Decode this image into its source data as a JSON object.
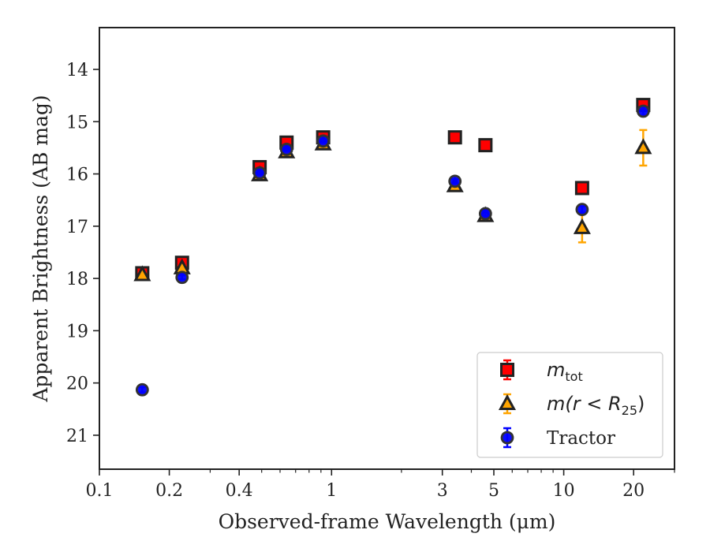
{
  "chart_data": {
    "type": "scatter",
    "title": "",
    "xlabel": "Observed-frame Wavelength (μm)",
    "ylabel": "Apparent Brightness (AB mag)",
    "xscale": "log",
    "xlim": [
      0.1,
      30
    ],
    "ylim": [
      21.65,
      13.2
    ],
    "y_inverted": true,
    "x_ticks": [
      {
        "value": 0.1,
        "label": "0.1"
      },
      {
        "value": 0.2,
        "label": "0.2"
      },
      {
        "value": 0.4,
        "label": "0.4"
      },
      {
        "value": 1,
        "label": "1"
      },
      {
        "value": 3,
        "label": "3"
      },
      {
        "value": 5,
        "label": "5"
      },
      {
        "value": 10,
        "label": "10"
      },
      {
        "value": 20,
        "label": "20"
      }
    ],
    "x_minor_ticks": [
      0.3,
      0.5,
      0.6,
      0.7,
      0.8,
      0.9,
      2,
      4,
      6,
      7,
      8,
      9,
      30
    ],
    "y_ticks": [
      14,
      15,
      16,
      17,
      18,
      19,
      20,
      21
    ],
    "grid": false,
    "legend_position": "bottom-right",
    "series": [
      {
        "name": "m_tot",
        "legend_label": {
          "base": "m",
          "sub": "tot"
        },
        "marker": "square",
        "color": "#ff0000",
        "edge_color": "#222222",
        "error_color": "#ff0000",
        "x": [
          0.153,
          0.227,
          0.49,
          0.64,
          0.92,
          3.4,
          4.6,
          12.0,
          22.0
        ],
        "y": [
          17.9,
          17.7,
          15.87,
          15.4,
          15.3,
          15.3,
          15.45,
          16.27,
          14.68
        ],
        "yerr": [
          0.04,
          0.04,
          0.03,
          0.03,
          0.03,
          0.03,
          0.03,
          0.05,
          0.08
        ]
      },
      {
        "name": "m(r < R25)",
        "legend_label": {
          "base": "m(r < R",
          "sub": "25",
          "close": ")"
        },
        "marker": "triangle",
        "color": "#ffa500",
        "edge_color": "#222222",
        "error_color": "#ffa500",
        "x": [
          0.153,
          0.227,
          0.49,
          0.64,
          0.92,
          3.4,
          4.6,
          12.0,
          22.0
        ],
        "y": [
          17.93,
          17.8,
          16.02,
          15.58,
          15.43,
          16.23,
          16.8,
          17.03,
          15.5
        ],
        "yerr": [
          0.04,
          0.04,
          0.03,
          0.03,
          0.03,
          0.04,
          0.05,
          0.28,
          0.34
        ]
      },
      {
        "name": "Tractor",
        "legend_label": {
          "base": "Tractor"
        },
        "marker": "circle",
        "color": "#0000ff",
        "edge_color": "#333333",
        "error_color": "#0000ff",
        "x": [
          0.153,
          0.227,
          0.49,
          0.64,
          0.92,
          3.4,
          4.6,
          12.0,
          22.0
        ],
        "y": [
          20.13,
          17.98,
          15.98,
          15.53,
          15.37,
          16.14,
          16.76,
          16.68,
          14.8
        ],
        "yerr": [
          0.05,
          0.04,
          0.03,
          0.03,
          0.03,
          0.04,
          0.05,
          0.06,
          0.08
        ]
      }
    ]
  }
}
